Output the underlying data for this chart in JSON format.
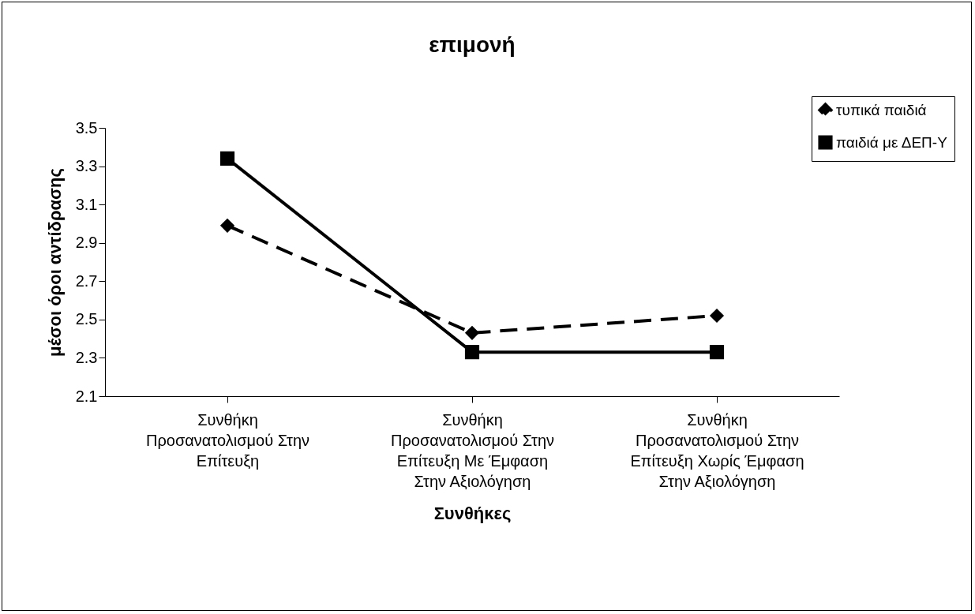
{
  "chart_data": {
    "type": "line",
    "title": "επιμονή",
    "xlabel": "Συνθήκες",
    "ylabel": "μέσοι όροι αντίδρασης",
    "categories": [
      "Συνθήκη Προσανατολισμού Στην Επίτευξη",
      "Συνθήκη Προσανατολισμού Στην Επίτευξη Με Έμφαση Στην Αξιολόγηση",
      "Συνθήκη Προσανατολισμού Στην Επίτευξη Χωρίς Έμφαση Στην Αξιολόγηση"
    ],
    "series": [
      {
        "name": "τυπικά παιδιά",
        "color": "#000000",
        "marker": "diamond",
        "line_style": "dashed",
        "values": [
          2.99,
          2.43,
          2.52
        ]
      },
      {
        "name": "παιδιά με ΔΕΠ-Υ",
        "color": "#000000",
        "marker": "square",
        "line_style": "solid",
        "values": [
          3.34,
          2.33,
          2.33
        ]
      }
    ],
    "ylim": [
      2.1,
      3.5
    ],
    "yticks": [
      2.1,
      2.3,
      2.5,
      2.7,
      2.9,
      3.1,
      3.3,
      3.5
    ],
    "grid": false,
    "legend": "top right"
  }
}
